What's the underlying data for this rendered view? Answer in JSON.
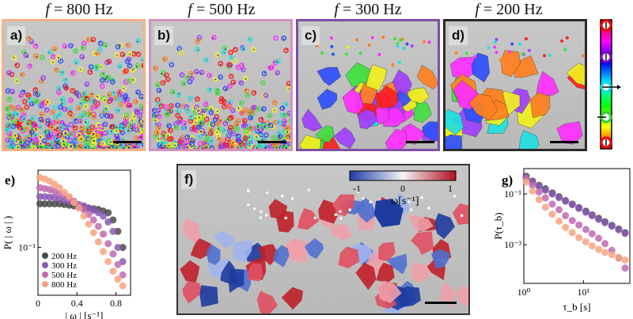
{
  "titles": [
    "f = 800 Hz",
    "f = 500 Hz",
    "f = 300 Hz",
    "f = 200 Hz"
  ],
  "title_parts": [
    {
      "var": "f",
      "val": "= 800 Hz"
    },
    {
      "var": "f",
      "val": "= 500 Hz"
    },
    {
      "var": "f",
      "val": "= 300 Hz"
    },
    {
      "var": "f",
      "val": "= 200 Hz"
    }
  ],
  "panel_labels": {
    "a": "a)",
    "b": "b)",
    "c": "c)",
    "d": "d)",
    "e": "e)",
    "f": "f)",
    "g": "g)"
  },
  "colors": {
    "frame_800": "#f4b183",
    "frame_500": "#d58fbf",
    "frame_300": "#7c4ea5",
    "frame_200": "#2b2b2b",
    "s200": "#4a4a4a",
    "s300": "#8b5bb5",
    "s500": "#c06ab0",
    "s800": "#f7a580"
  },
  "colorwheel": {
    "icons": [
      "arrow-up-icon",
      "arrow-down-icon",
      "arrow-left-icon",
      "arrow-right-icon",
      "arrow-up-icon"
    ]
  },
  "omega_colorbar": {
    "ticks": [
      "-1",
      "0",
      "1"
    ],
    "label": "ω[s⁻¹]"
  },
  "chart_data": [
    {
      "type": "scatter",
      "panel": "e",
      "xlabel": "| ω | [s⁻¹]",
      "ylabel": "P( | ω | )",
      "yscale": "log",
      "xlim": [
        0,
        0.95
      ],
      "ylim": [
        0.03,
        0.7
      ],
      "xticks": [
        "0",
        "0.4",
        "0.8"
      ],
      "xtick_values": [
        0,
        0.4,
        0.8
      ],
      "yticks": [
        "10⁻¹"
      ],
      "ytick_values": [
        0.1
      ],
      "legend_position": "lower-left",
      "series": [
        {
          "name": "200 Hz",
          "color": "#4a4a4a",
          "x": [
            0.02,
            0.07,
            0.12,
            0.17,
            0.22,
            0.27,
            0.32,
            0.37,
            0.42,
            0.47,
            0.52,
            0.57,
            0.62,
            0.67,
            0.72,
            0.77,
            0.82,
            0.87
          ],
          "y": [
            0.3,
            0.3,
            0.3,
            0.3,
            0.3,
            0.295,
            0.29,
            0.285,
            0.28,
            0.275,
            0.27,
            0.265,
            0.26,
            0.25,
            0.24,
            0.2,
            0.15,
            0.1
          ]
        },
        {
          "name": "300 Hz",
          "color": "#8b5bb5",
          "x": [
            0.02,
            0.07,
            0.12,
            0.17,
            0.22,
            0.27,
            0.32,
            0.37,
            0.42,
            0.47,
            0.52,
            0.57,
            0.62,
            0.67,
            0.72,
            0.77,
            0.82,
            0.87
          ],
          "y": [
            0.36,
            0.36,
            0.355,
            0.35,
            0.34,
            0.33,
            0.32,
            0.31,
            0.295,
            0.285,
            0.27,
            0.255,
            0.24,
            0.22,
            0.19,
            0.15,
            0.1,
            0.07
          ]
        },
        {
          "name": "500 Hz",
          "color": "#c06ab0",
          "x": [
            0.02,
            0.07,
            0.12,
            0.17,
            0.22,
            0.27,
            0.32,
            0.37,
            0.42,
            0.47,
            0.52,
            0.57,
            0.62,
            0.67,
            0.72,
            0.77,
            0.82,
            0.87
          ],
          "y": [
            0.45,
            0.44,
            0.43,
            0.41,
            0.39,
            0.37,
            0.34,
            0.32,
            0.29,
            0.26,
            0.23,
            0.2,
            0.17,
            0.14,
            0.11,
            0.085,
            0.065,
            0.05
          ]
        },
        {
          "name": "800 Hz",
          "color": "#f7a580",
          "x": [
            0.02,
            0.07,
            0.12,
            0.17,
            0.22,
            0.27,
            0.32,
            0.37,
            0.42,
            0.47,
            0.52,
            0.57,
            0.62,
            0.67,
            0.72,
            0.77,
            0.82,
            0.87
          ],
          "y": [
            0.58,
            0.56,
            0.53,
            0.49,
            0.45,
            0.4,
            0.36,
            0.31,
            0.27,
            0.22,
            0.18,
            0.145,
            0.115,
            0.09,
            0.07,
            0.055,
            0.045,
            0.038
          ]
        }
      ]
    },
    {
      "type": "scatter",
      "panel": "g",
      "xlabel": "τ_b [s]",
      "ylabel": "P(τ_b)",
      "xscale": "log",
      "yscale": "log",
      "xlim": [
        1,
        60
      ],
      "ylim": [
        3e-05,
        1
      ],
      "xticks": [
        "10⁰",
        "10¹"
      ],
      "xtick_values": [
        1,
        10
      ],
      "yticks": [
        "10⁻¹",
        "10⁻³"
      ],
      "ytick_values": [
        0.1,
        0.001
      ],
      "series": [
        {
          "color": "#4a4a4a",
          "x": [
            1.1,
            1.4,
            1.8,
            2.3,
            3,
            3.9,
            5,
            6.5,
            8.4,
            11,
            14,
            18,
            23,
            30,
            39,
            50
          ],
          "y": [
            0.5,
            0.32,
            0.22,
            0.16,
            0.11,
            0.078,
            0.055,
            0.04,
            0.029,
            0.021,
            0.015,
            0.011,
            0.008,
            0.0058,
            0.0042,
            0.003
          ]
        },
        {
          "color": "#8b5bb5",
          "x": [
            1.1,
            1.4,
            1.8,
            2.3,
            3,
            3.9,
            5,
            6.5,
            8.4,
            11,
            14,
            18,
            23,
            30,
            39,
            50
          ],
          "y": [
            0.45,
            0.3,
            0.2,
            0.14,
            0.1,
            0.072,
            0.052,
            0.038,
            0.027,
            0.019,
            0.014,
            0.01,
            0.0074,
            0.0054,
            0.0039,
            0.0028
          ]
        },
        {
          "color": "#c06ab0",
          "x": [
            1.1,
            1.4,
            1.8,
            2.3,
            3,
            3.9,
            5,
            6.5,
            8.4,
            11,
            14,
            18,
            23,
            30,
            39,
            50
          ],
          "y": [
            0.4,
            0.22,
            0.12,
            0.07,
            0.04,
            0.024,
            0.014,
            0.009,
            0.006,
            0.004,
            0.0027,
            0.0018,
            0.0011,
            0.0006,
            0.0003,
            0.00012
          ]
        },
        {
          "color": "#f7a580",
          "x": [
            1.1,
            1.4,
            1.8,
            2.3,
            3,
            3.9,
            5,
            6.5,
            8.4,
            11,
            14,
            18,
            23,
            30,
            39,
            50
          ],
          "y": [
            0.3,
            0.13,
            0.06,
            0.03,
            0.016,
            0.0085,
            0.0048,
            0.003,
            0.0019,
            0.0013,
            0.0009,
            0.00065,
            0.0005,
            0.0004,
            0.00032,
            0.00025
          ]
        }
      ]
    }
  ]
}
